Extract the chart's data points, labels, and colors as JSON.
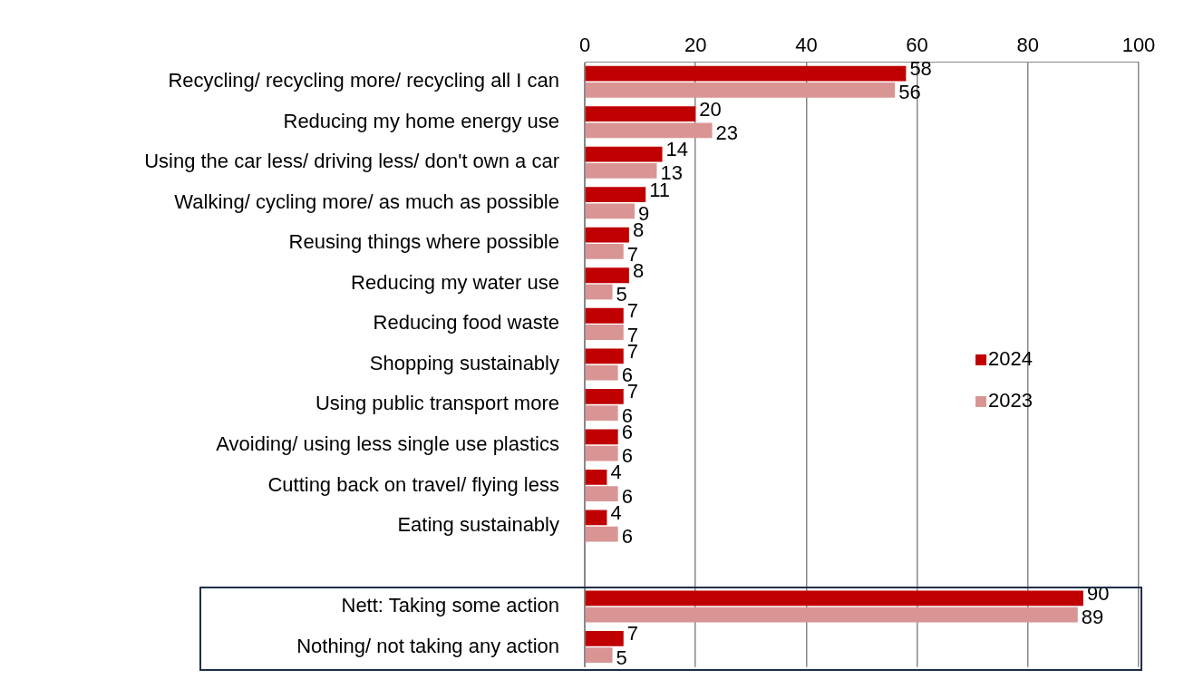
{
  "chart_data": {
    "type": "bar",
    "orientation": "horizontal",
    "categories": [
      "Recycling/ recycling more/ recycling all I can",
      "Reducing my home energy use",
      "Using the car less/ driving less/ don't own a car",
      "Walking/ cycling more/ as much as possible",
      "Reusing things where possible",
      "Reducing my water use",
      "Reducing food waste",
      "Shopping sustainably",
      "Using public transport more",
      "Avoiding/ using less single use plastics",
      "Cutting back on travel/ flying less",
      "Eating sustainably",
      null,
      "Nett: Taking some action",
      "Nothing/ not taking any action"
    ],
    "series": [
      {
        "name": "2024",
        "color": "#c00000",
        "values": [
          58,
          20,
          14,
          11,
          8,
          8,
          7,
          7,
          7,
          6,
          4,
          4,
          null,
          90,
          7
        ]
      },
      {
        "name": "2023",
        "color": "#d99594",
        "values": [
          56,
          23,
          13,
          9,
          7,
          5,
          7,
          6,
          6,
          6,
          6,
          6,
          null,
          89,
          5
        ]
      }
    ],
    "xlim": [
      0,
      100
    ],
    "xticks": [
      0,
      20,
      40,
      60,
      80,
      100
    ],
    "grid": "x",
    "legend": "right",
    "data_labels": true
  }
}
